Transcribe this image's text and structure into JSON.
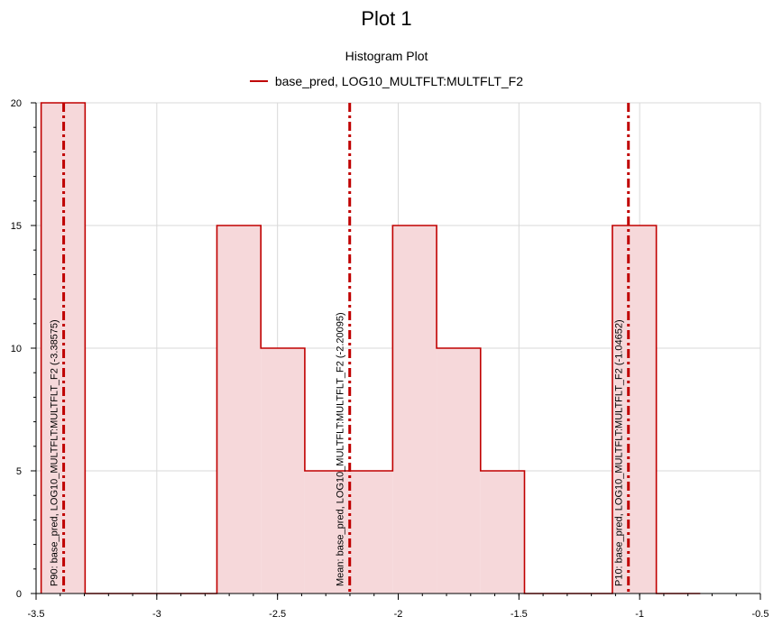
{
  "title": "Plot 1",
  "chart_data": {
    "type": "histogram",
    "title": "Histogram Plot",
    "series_name": "base_pred, LOG10_MULTFLT:MULTFLT_F2",
    "colors": {
      "line": "#c00000",
      "fill": "#f6d8da",
      "grid": "#d9d9d9"
    },
    "xlim": [
      -3.5,
      -0.5
    ],
    "ylim": [
      0,
      20
    ],
    "x_ticks": [
      -3.5,
      -3,
      -2.5,
      -2,
      -1.5,
      -1,
      -0.5
    ],
    "x_tick_labels": [
      "-3.5",
      "-3",
      "-2.5",
      "-2",
      "-1.5",
      "-1",
      "-0.5"
    ],
    "y_ticks": [
      0,
      5,
      10,
      15,
      20
    ],
    "y_tick_labels": [
      "0",
      "5",
      "10",
      "15",
      "20"
    ],
    "grid": true,
    "bins": [
      {
        "x0": -3.479,
        "x1": -3.297,
        "count": 20
      },
      {
        "x0": -3.297,
        "x1": -3.115,
        "count": 0
      },
      {
        "x0": -3.115,
        "x1": -2.933,
        "count": 0
      },
      {
        "x0": -2.933,
        "x1": -2.751,
        "count": 0
      },
      {
        "x0": -2.751,
        "x1": -2.569,
        "count": 15
      },
      {
        "x0": -2.569,
        "x1": -2.387,
        "count": 10
      },
      {
        "x0": -2.387,
        "x1": -2.205,
        "count": 5
      },
      {
        "x0": -2.205,
        "x1": -2.023,
        "count": 5
      },
      {
        "x0": -2.023,
        "x1": -1.841,
        "count": 15
      },
      {
        "x0": -1.841,
        "x1": -1.659,
        "count": 10
      },
      {
        "x0": -1.659,
        "x1": -1.477,
        "count": 5
      },
      {
        "x0": -1.477,
        "x1": -1.295,
        "count": 0
      },
      {
        "x0": -1.295,
        "x1": -1.113,
        "count": 0
      },
      {
        "x0": -1.113,
        "x1": -0.931,
        "count": 15
      },
      {
        "x0": -0.931,
        "x1": -0.749,
        "count": 0
      }
    ],
    "vlines": [
      {
        "x": -3.38575,
        "label": "P90: base_pred, LOG10_MULTFLT:MULTFLT_F2 (-3.38575)"
      },
      {
        "x": -2.20095,
        "label": "Mean: base_pred, LOG10_MULTFLT:MULTFLT_F2 (-2.20095)"
      },
      {
        "x": -1.04652,
        "label": "P10: base_pred, LOG10_MULTFLT:MULTFLT_F2 (-1.04652)"
      }
    ]
  }
}
